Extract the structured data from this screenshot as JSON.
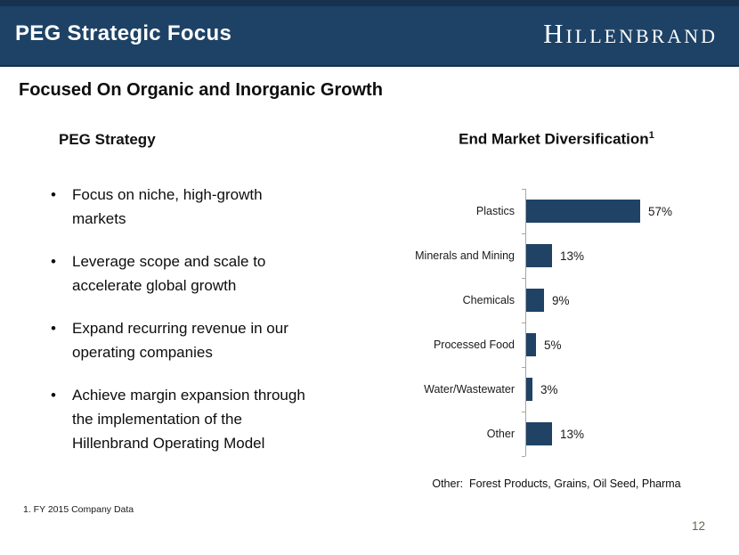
{
  "header": {
    "title": "PEG Strategic Focus",
    "logo_text": "Hillenbrand",
    "bar_color": "#1D4266"
  },
  "subtitle": "Focused On Organic and Inorganic Growth",
  "strategy": {
    "heading": "PEG Strategy",
    "bullets": [
      "Focus on niche, high-growth\nmarkets",
      "Leverage scope and scale to\naccelerate global growth",
      "Expand recurring revenue in our\noperating companies",
      "Achieve margin expansion through\nthe implementation of the\nHillenbrand Operating Model"
    ]
  },
  "chart_data": {
    "type": "bar",
    "orientation": "horizontal",
    "title": "End Market Diversification",
    "title_superscript": "1",
    "categories": [
      "Plastics",
      "Minerals and Mining",
      "Chemicals",
      "Processed Food",
      "Water/Wastewater",
      "Other"
    ],
    "values": [
      57,
      13,
      9,
      5,
      3,
      13
    ],
    "value_suffix": "%",
    "xlim": [
      0,
      100
    ],
    "grid": false,
    "legend": false,
    "bar_color": "#1F4265",
    "axis_color": "#A6A6A6",
    "note": "Other:  Forest Products, Grains, Oil Seed, Pharma"
  },
  "footer": {
    "footnote": "1. FY 2015 Company Data",
    "page_number": "12"
  }
}
